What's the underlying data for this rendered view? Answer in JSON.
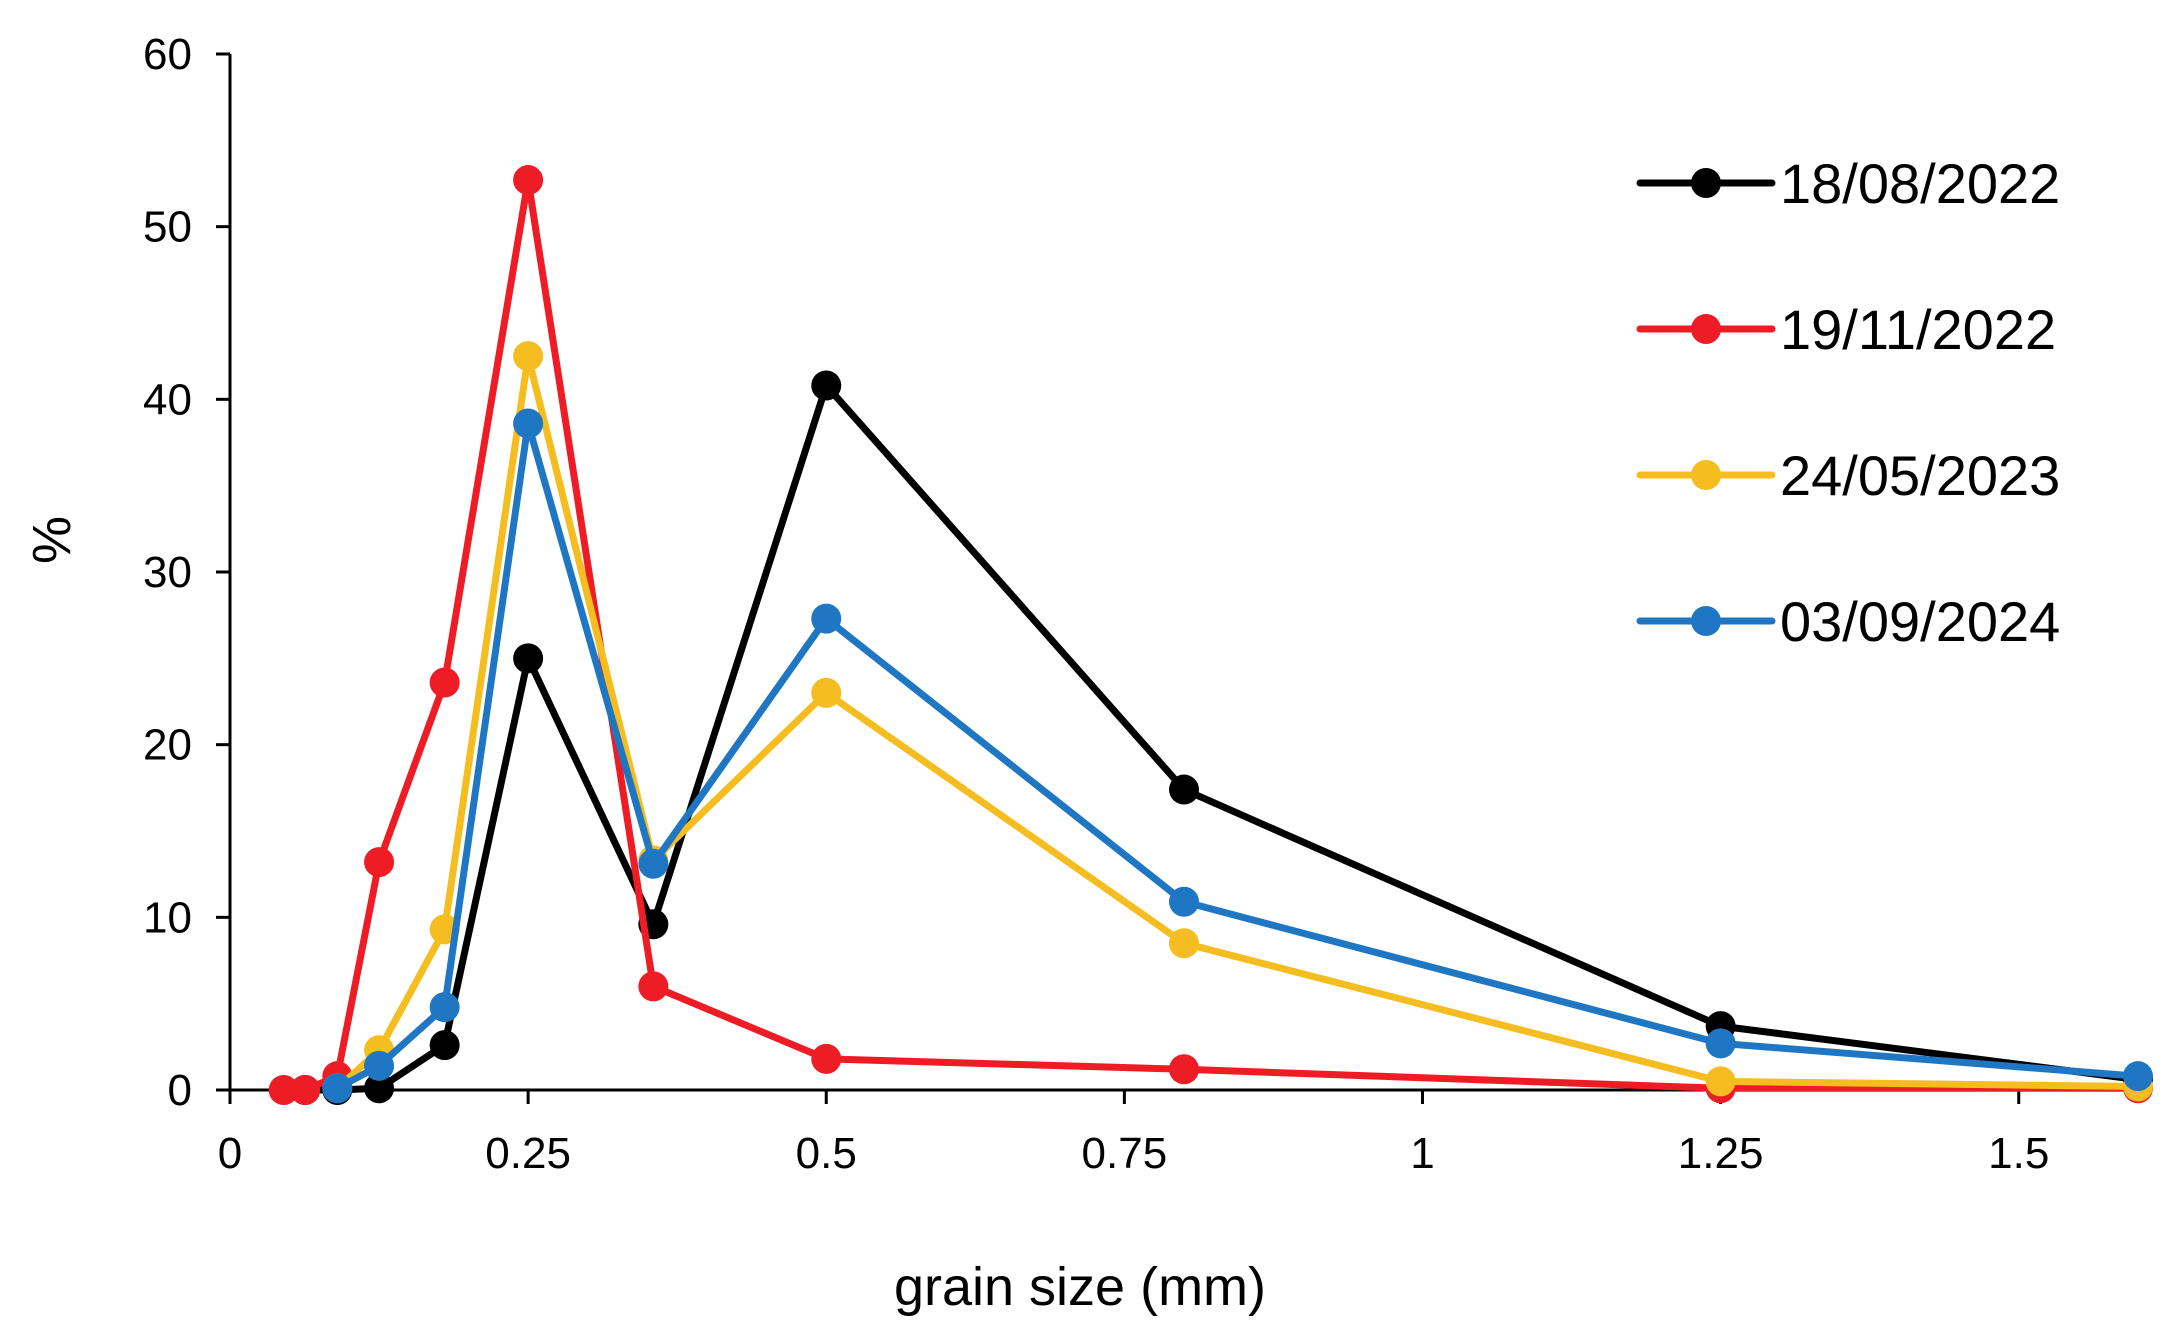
{
  "chart_data": {
    "type": "line",
    "title": "",
    "xlabel": "grain size (mm)",
    "ylabel": "%",
    "xlim": [
      0,
      1.6
    ],
    "ylim": [
      0,
      60
    ],
    "xticks": [
      {
        "value": 0,
        "label": "0"
      },
      {
        "value": 0.25,
        "label": "0.25"
      },
      {
        "value": 0.5,
        "label": "0.5"
      },
      {
        "value": 0.75,
        "label": "0.75"
      },
      {
        "value": 1,
        "label": "1"
      },
      {
        "value": 1.25,
        "label": "1.25"
      },
      {
        "value": 1.5,
        "label": "1.5"
      }
    ],
    "yticks": [
      {
        "value": 0,
        "label": "0"
      },
      {
        "value": 10,
        "label": "10"
      },
      {
        "value": 20,
        "label": "20"
      },
      {
        "value": 30,
        "label": "30"
      },
      {
        "value": 40,
        "label": "40"
      },
      {
        "value": 50,
        "label": "50"
      },
      {
        "value": 60,
        "label": "60"
      }
    ],
    "grid": false,
    "legend_position": "top-right",
    "series": [
      {
        "name": "18/08/2022",
        "color": "#000000",
        "points": [
          [
            0.063,
            0
          ],
          [
            0.09,
            0
          ],
          [
            0.125,
            0.1
          ],
          [
            0.18,
            2.6
          ],
          [
            0.25,
            25
          ],
          [
            0.355,
            9.6
          ],
          [
            0.5,
            40.8
          ],
          [
            0.8,
            17.4
          ],
          [
            1.25,
            3.7
          ],
          [
            1.6,
            0.6
          ]
        ]
      },
      {
        "name": "19/11/2022",
        "color": "#ee1c25",
        "points": [
          [
            0.045,
            0
          ],
          [
            0.063,
            0
          ],
          [
            0.09,
            0.8
          ],
          [
            0.125,
            13.2
          ],
          [
            0.18,
            23.6
          ],
          [
            0.25,
            52.7
          ],
          [
            0.355,
            6
          ],
          [
            0.5,
            1.8
          ],
          [
            0.8,
            1.2
          ],
          [
            1.25,
            0.1
          ],
          [
            1.6,
            0.1
          ]
        ]
      },
      {
        "name": "24/05/2023",
        "color": "#f5bd1f",
        "points": [
          [
            0.09,
            0.1
          ],
          [
            0.125,
            2.3
          ],
          [
            0.18,
            9.3
          ],
          [
            0.25,
            42.5
          ],
          [
            0.355,
            13.3
          ],
          [
            0.5,
            23
          ],
          [
            0.8,
            8.5
          ],
          [
            1.25,
            0.5
          ],
          [
            1.6,
            0.2
          ]
        ]
      },
      {
        "name": "03/09/2024",
        "color": "#1f77c4",
        "points": [
          [
            0.09,
            0.1
          ],
          [
            0.125,
            1.4
          ],
          [
            0.18,
            4.8
          ],
          [
            0.25,
            38.6
          ],
          [
            0.355,
            13.1
          ],
          [
            0.5,
            27.3
          ],
          [
            0.8,
            10.9
          ],
          [
            1.25,
            2.7
          ],
          [
            1.6,
            0.8
          ]
        ]
      }
    ]
  }
}
